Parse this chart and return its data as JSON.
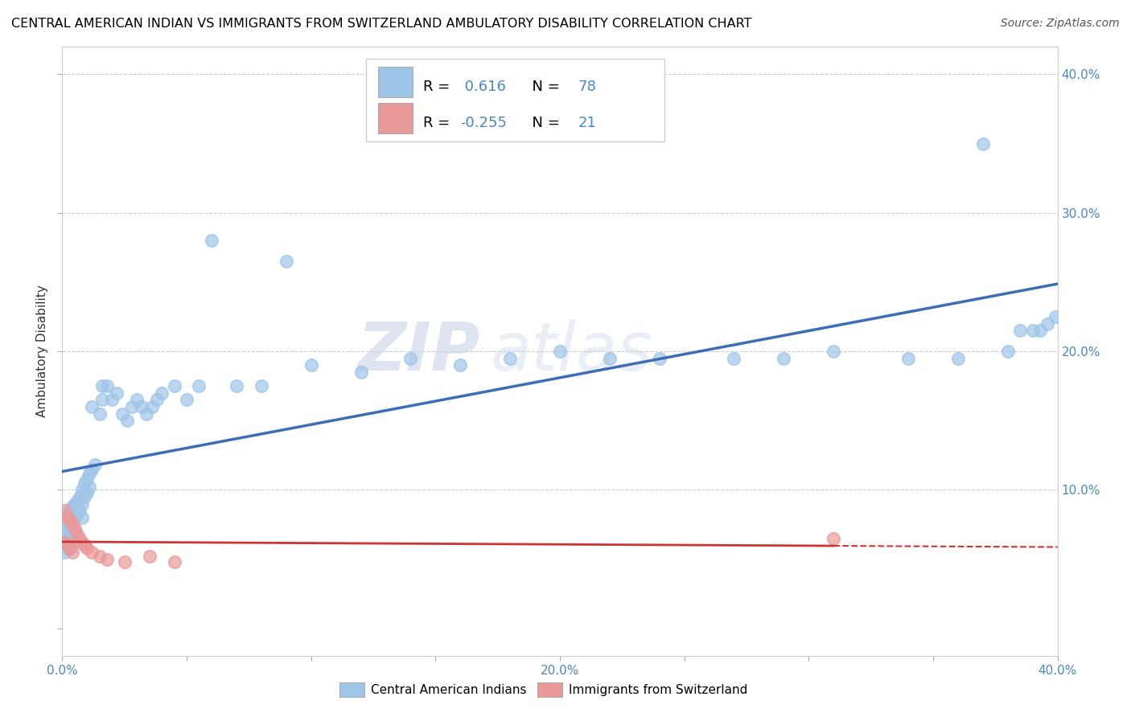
{
  "title": "CENTRAL AMERICAN INDIAN VS IMMIGRANTS FROM SWITZERLAND AMBULATORY DISABILITY CORRELATION CHART",
  "source": "Source: ZipAtlas.com",
  "ylabel": "Ambulatory Disability",
  "xlim": [
    0.0,
    0.4
  ],
  "ylim": [
    -0.02,
    0.42
  ],
  "blue_R": 0.616,
  "blue_N": 78,
  "pink_R": -0.255,
  "pink_N": 21,
  "blue_color": "#9fc5e8",
  "pink_color": "#ea9999",
  "blue_line_color": "#3d6eb5",
  "pink_line_color": "#cc3333",
  "background_color": "#ffffff",
  "grid_color": "#cccccc",
  "watermark_zip": "ZIP",
  "watermark_atlas": "atlas",
  "legend_blue_label": "Central American Indians",
  "legend_pink_label": "Immigrants from Switzerland",
  "blue_x": [
    0.001,
    0.001,
    0.001,
    0.001,
    0.001,
    0.002,
    0.002,
    0.002,
    0.002,
    0.003,
    0.003,
    0.003,
    0.003,
    0.003,
    0.004,
    0.004,
    0.004,
    0.005,
    0.005,
    0.005,
    0.006,
    0.006,
    0.007,
    0.007,
    0.008,
    0.008,
    0.008,
    0.009,
    0.009,
    0.01,
    0.01,
    0.011,
    0.011,
    0.012,
    0.012,
    0.013,
    0.015,
    0.016,
    0.016,
    0.018,
    0.02,
    0.022,
    0.024,
    0.026,
    0.028,
    0.03,
    0.032,
    0.034,
    0.036,
    0.038,
    0.04,
    0.045,
    0.05,
    0.055,
    0.06,
    0.07,
    0.08,
    0.09,
    0.1,
    0.12,
    0.14,
    0.16,
    0.18,
    0.2,
    0.22,
    0.24,
    0.27,
    0.29,
    0.31,
    0.34,
    0.36,
    0.37,
    0.38,
    0.385,
    0.39,
    0.393,
    0.396,
    0.399
  ],
  "blue_y": [
    0.08,
    0.075,
    0.068,
    0.062,
    0.055,
    0.082,
    0.073,
    0.065,
    0.058,
    0.085,
    0.075,
    0.068,
    0.063,
    0.058,
    0.088,
    0.078,
    0.068,
    0.09,
    0.08,
    0.07,
    0.092,
    0.082,
    0.095,
    0.085,
    0.1,
    0.09,
    0.08,
    0.105,
    0.095,
    0.108,
    0.098,
    0.112,
    0.102,
    0.16,
    0.115,
    0.118,
    0.155,
    0.175,
    0.165,
    0.175,
    0.165,
    0.17,
    0.155,
    0.15,
    0.16,
    0.165,
    0.16,
    0.155,
    0.16,
    0.165,
    0.17,
    0.175,
    0.165,
    0.175,
    0.28,
    0.175,
    0.175,
    0.265,
    0.19,
    0.185,
    0.195,
    0.19,
    0.195,
    0.2,
    0.195,
    0.195,
    0.195,
    0.195,
    0.2,
    0.195,
    0.195,
    0.35,
    0.2,
    0.215,
    0.215,
    0.215,
    0.22,
    0.225
  ],
  "pink_x": [
    0.001,
    0.001,
    0.002,
    0.002,
    0.003,
    0.003,
    0.004,
    0.004,
    0.005,
    0.006,
    0.007,
    0.008,
    0.009,
    0.01,
    0.012,
    0.015,
    0.018,
    0.025,
    0.035,
    0.045,
    0.31
  ],
  "pink_y": [
    0.085,
    0.062,
    0.08,
    0.06,
    0.078,
    0.058,
    0.075,
    0.055,
    0.072,
    0.068,
    0.065,
    0.062,
    0.06,
    0.058,
    0.055,
    0.052,
    0.05,
    0.048,
    0.052,
    0.048,
    0.065
  ]
}
